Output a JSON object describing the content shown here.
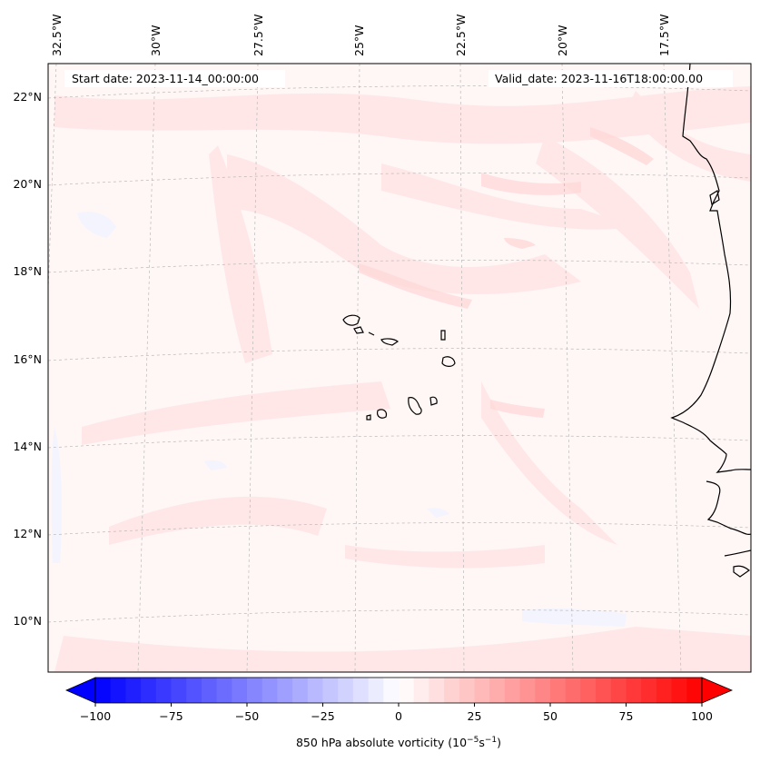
{
  "map": {
    "region": "Cape Verde / West African coast",
    "projection": "Lambert conformal",
    "lon_labels": [
      "32.5°W",
      "30°W",
      "27.5°W",
      "25°W",
      "22.5°W",
      "20°W",
      "17.5°W"
    ],
    "lat_labels": [
      "22°N",
      "20°N",
      "18°N",
      "16°N",
      "14°N",
      "12°N",
      "10°N"
    ],
    "start_date_text": "Start date: 2023-11-14_00:00:00",
    "valid_date_text": "Valid_date: 2023-11-16T18:00:00.00",
    "colors": {
      "positive": "#ff0000",
      "negative": "#0000ff",
      "background": "#fff6f6",
      "coast": "#000000",
      "grid": "#b0b0b0"
    }
  },
  "colorbar": {
    "ticks": [
      "−100",
      "−75",
      "−50",
      "−25",
      "0",
      "25",
      "50",
      "75",
      "100"
    ],
    "label_main": "850 hPa absolute vorticity (10",
    "label_exp1": "−5",
    "label_mid": "s",
    "label_exp2": "−1",
    "label_end": ")",
    "min": -100,
    "max": 100,
    "step": 5,
    "colormap": "bwr"
  }
}
